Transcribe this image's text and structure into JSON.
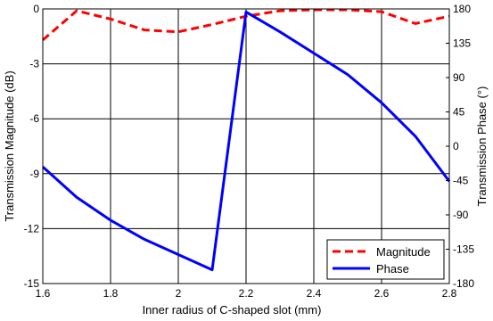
{
  "chart_data": {
    "type": "line",
    "xlabel": "Inner radius of C-shaped slot (mm)",
    "ylabel_left": "Transmission Magnitude (dB)",
    "ylabel_right": "Transmission Phase (°)",
    "xlim": [
      1.6,
      2.8
    ],
    "ylim_left": [
      -15,
      0
    ],
    "ylim_right": [
      -180,
      180
    ],
    "x_ticks": [
      "1.6",
      "1.8",
      "2",
      "2.2",
      "2.4",
      "2.6",
      "2.8"
    ],
    "y_left_ticks": [
      "0",
      "-3",
      "-6",
      "-9",
      "-12",
      "-15"
    ],
    "y_right_ticks": [
      "180",
      "135",
      "90",
      "45",
      "0",
      "-45",
      "-90",
      "-135",
      "-180"
    ],
    "grid": true,
    "legend_position": "bottom-right",
    "series": [
      {
        "name": "Magnitude",
        "axis": "left",
        "color": "#ff0000",
        "dash": true,
        "x": [
          1.6,
          1.7,
          1.8,
          1.9,
          2.0,
          2.1,
          2.2,
          2.3,
          2.4,
          2.5,
          2.6,
          2.7,
          2.8
        ],
        "values": [
          -1.7,
          -0.1,
          -0.55,
          -1.15,
          -1.25,
          -0.85,
          -0.4,
          -0.1,
          -0.05,
          -0.05,
          -0.15,
          -0.8,
          -0.4
        ]
      },
      {
        "name": "Phase",
        "axis": "right",
        "color": "#0000ff",
        "dash": false,
        "x": [
          1.6,
          1.7,
          1.8,
          1.9,
          2.0,
          2.1,
          2.1,
          2.2,
          2.3,
          2.4,
          2.5,
          2.6,
          2.7,
          2.8
        ],
        "values": [
          -27,
          -67,
          -97,
          -122,
          -142,
          -162,
          -162,
          176,
          150,
          122,
          94,
          57,
          13,
          -46
        ]
      }
    ]
  }
}
